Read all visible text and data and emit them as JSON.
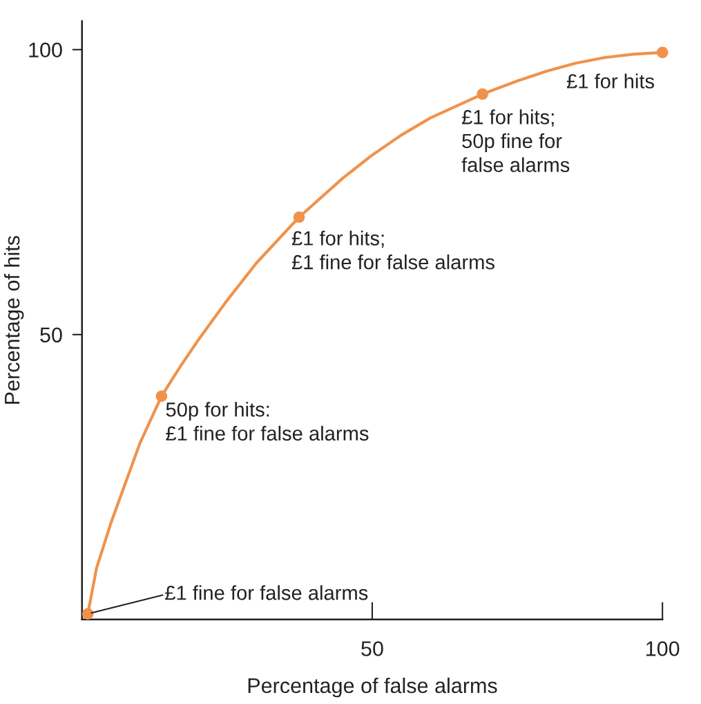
{
  "chart_data": {
    "type": "line",
    "xlabel": "Percentage of false alarms",
    "ylabel": "Percentage of hits",
    "x": [
      1,
      13.7,
      37.4,
      69,
      100
    ],
    "series": [
      {
        "color": "#f0924a",
        "x": [
          1,
          2.5,
          5,
          7.5,
          10,
          13.7,
          17,
          20,
          25,
          30,
          37.4,
          45,
          50,
          55,
          60,
          69,
          75,
          80,
          85,
          90,
          95,
          100
        ],
        "values": [
          1,
          9,
          17,
          24,
          31,
          39.2,
          44.5,
          49,
          56,
          62.5,
          70.6,
          77.5,
          81.5,
          85,
          88,
          92.2,
          94.5,
          96.2,
          97.6,
          98.6,
          99.2,
          99.5
        ]
      },
      {
        "type": "scatter",
        "marker": "circle",
        "color": "#f0924a",
        "values": [
          1,
          39.2,
          70.6,
          92.2,
          99.5
        ]
      }
    ],
    "line_style": "solid",
    "grid": false,
    "legend": false,
    "xlim": [
      0,
      100
    ],
    "xticks": [
      50,
      100
    ],
    "ylim": [
      0,
      105
    ],
    "yticks": [
      50,
      100
    ],
    "annotations": [
      {
        "text": "£1 fine for false alarms",
        "x": 1,
        "y": 1
      },
      {
        "text": "50p for hits:\n£1 fine for false alarms",
        "x": 13.7,
        "y": 39.2
      },
      {
        "text": "£1 for hits;\n£1 fine for false alarms",
        "x": 37.4,
        "y": 70.6
      },
      {
        "text": "£1 for hits;\n50p fine for\nfalse alarms",
        "x": 69,
        "y": 92.2
      },
      {
        "text": "£1 for hits",
        "x": 100,
        "y": 99.5
      }
    ]
  }
}
